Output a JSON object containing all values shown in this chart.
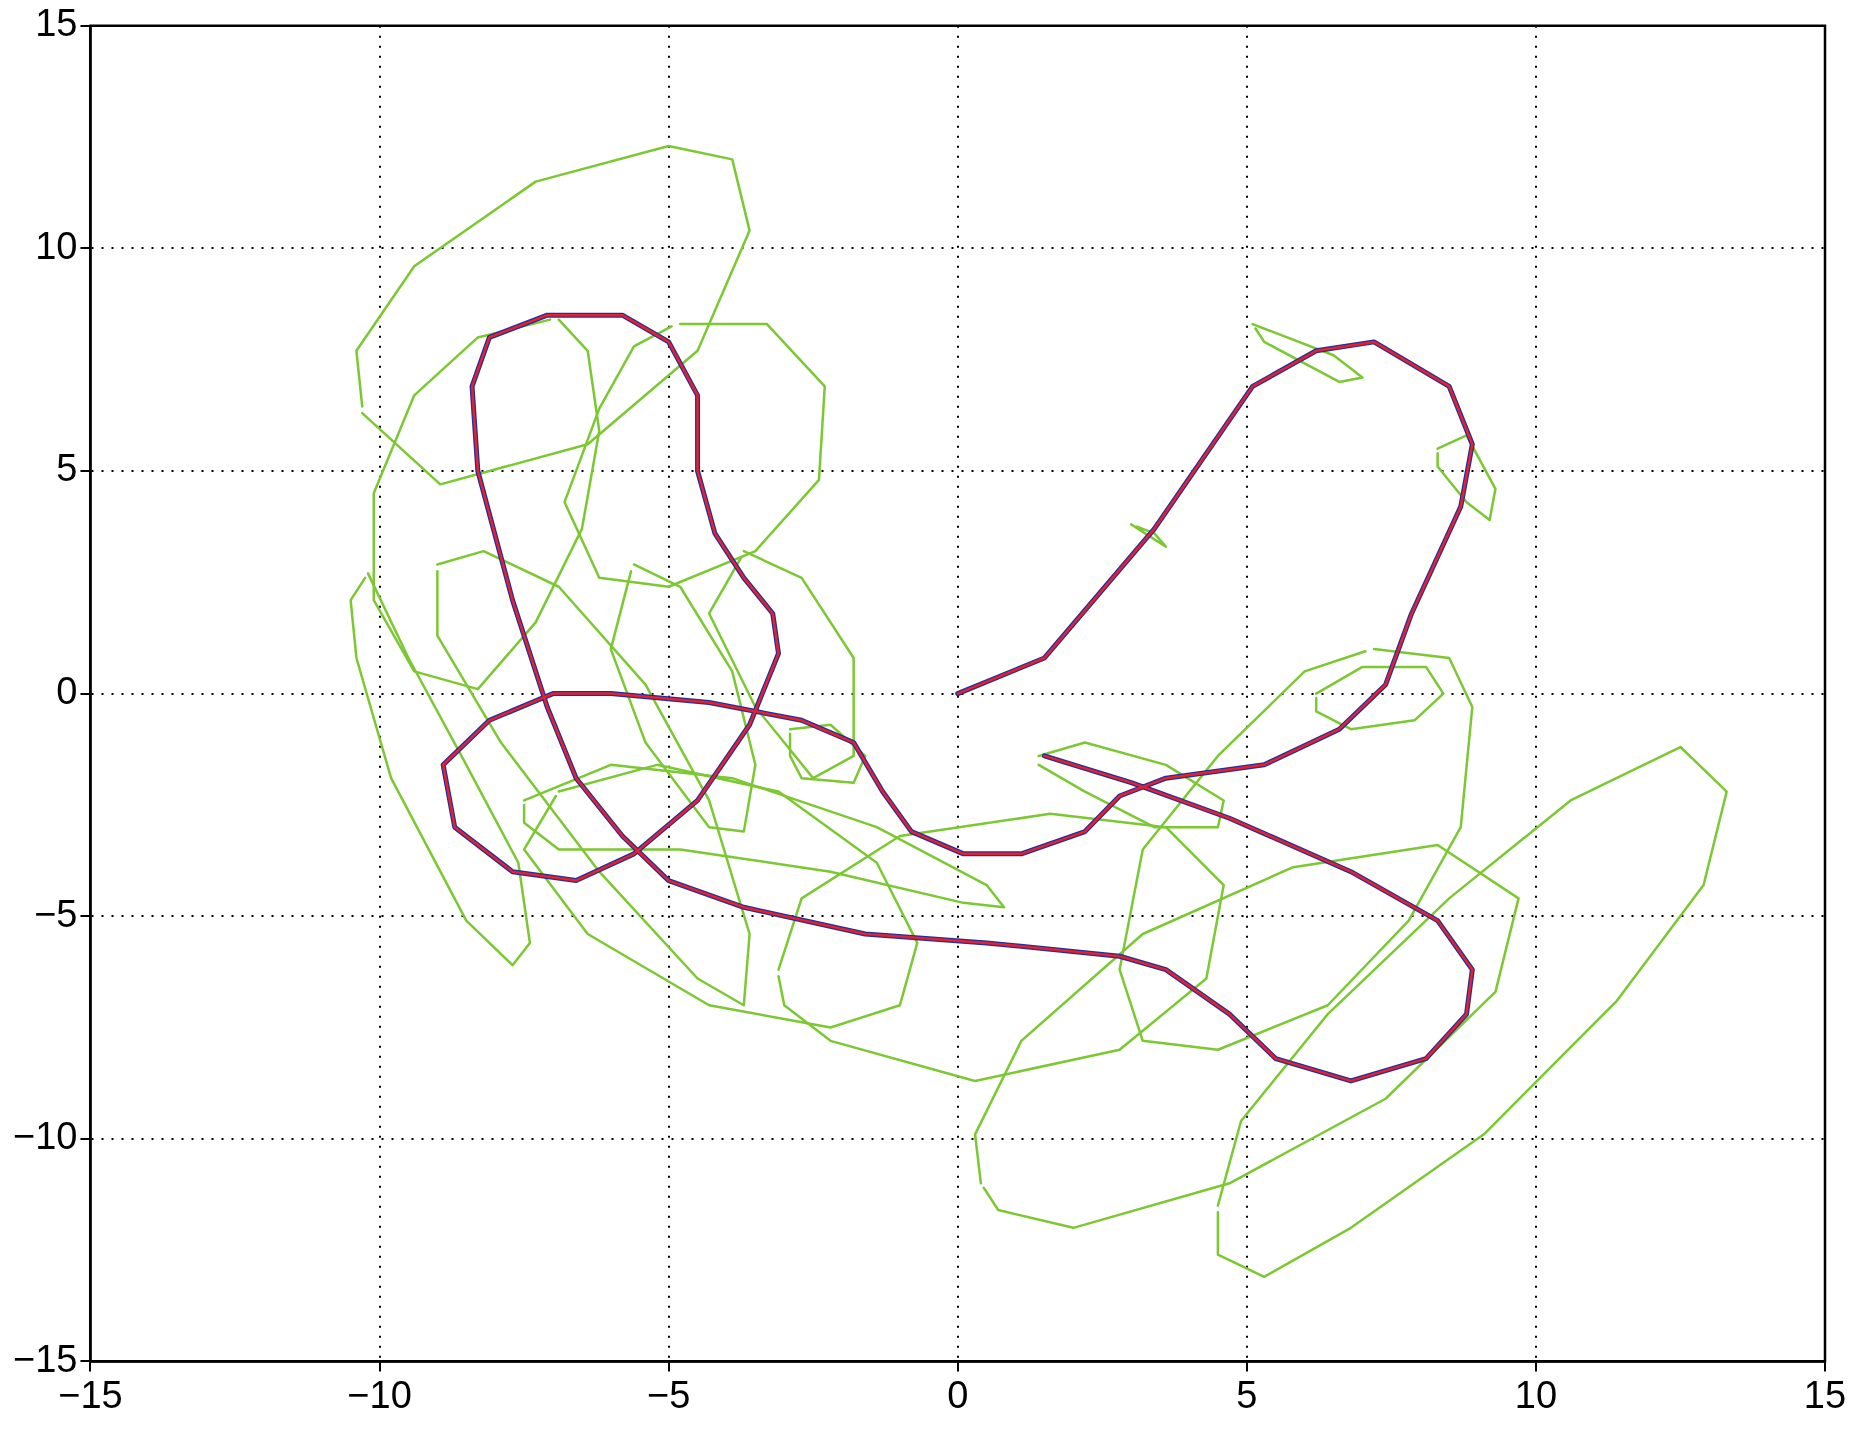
{
  "chart_data": {
    "type": "line",
    "xlim": [
      -15,
      15
    ],
    "ylim": [
      -15,
      15
    ],
    "xticks": [
      {
        "value": -15,
        "label": "−15"
      },
      {
        "value": -10,
        "label": "−10"
      },
      {
        "value": -5,
        "label": "−5"
      },
      0,
      5,
      10,
      15
    ],
    "yticks": [
      {
        "value": -15,
        "label": "−15"
      },
      {
        "value": -10,
        "label": "−10"
      },
      {
        "value": -5,
        "label": "−5"
      },
      0,
      5,
      10,
      15
    ],
    "grid": true,
    "legend": false,
    "marker": "none",
    "line_style": "solid",
    "series": [
      {
        "color": "#e8202a",
        "x": [
          0,
          1.5,
          3.4,
          5.1,
          6.2,
          7.2,
          8.5,
          8.9,
          8.7,
          7.85,
          7.4,
          6.6,
          5.3,
          3.6,
          2.8,
          2.2,
          1.1,
          0.1,
          -0.8,
          -1.3,
          -1.8,
          -2.7,
          -4.3,
          -6.0,
          -7.0,
          -8.1,
          -8.9,
          -8.7,
          -7.7,
          -6.6,
          -5.6,
          -4.5,
          -3.6,
          -3.1,
          -3.2,
          -3.7,
          -4.2,
          -4.5,
          -4.5,
          -5.0,
          -5.8,
          -7.1,
          -8.1,
          -8.4,
          -8.3,
          -7.7,
          -7.1,
          -6.6,
          -5.8,
          -5.0,
          -3.7,
          -1.6,
          0.5,
          2.8,
          3.6,
          4.7,
          5.5,
          6.8,
          8.1,
          8.8,
          8.9,
          8.3,
          6.8,
          4.7,
          3.0,
          1.5
        ],
        "values": [
          0,
          0.8,
          3.7,
          6.9,
          7.7,
          7.9,
          6.9,
          5.6,
          4.2,
          1.8,
          0.2,
          -0.8,
          -1.6,
          -1.9,
          -2.3,
          -3.1,
          -3.6,
          -3.6,
          -3.1,
          -2.2,
          -1.1,
          -0.6,
          -0.2,
          0,
          0,
          -0.6,
          -1.6,
          -3.0,
          -4.0,
          -4.2,
          -3.6,
          -2.4,
          -0.7,
          0.9,
          1.8,
          2.6,
          3.6,
          5.0,
          6.7,
          7.9,
          8.5,
          8.5,
          8.0,
          6.9,
          5.0,
          2.1,
          -0.3,
          -1.9,
          -3.2,
          -4.2,
          -4.8,
          -5.4,
          -5.6,
          -5.9,
          -6.2,
          -7.2,
          -8.2,
          -8.7,
          -8.2,
          -7.2,
          -6.2,
          -5.1,
          -4.0,
          -2.8,
          -2.0,
          -1.4
        ]
      },
      {
        "color": "#2030a0",
        "x": [
          0,
          1.5,
          3.4,
          5.1,
          6.2,
          7.2,
          8.5,
          8.9,
          8.7,
          7.85,
          7.4,
          6.6,
          5.3,
          3.6,
          2.8,
          2.2,
          1.1,
          0.1,
          -0.8,
          -1.3,
          -1.8,
          -2.7,
          -4.3,
          -6.0,
          -7.0,
          -8.1,
          -8.9,
          -8.7,
          -7.7,
          -6.6,
          -5.6,
          -4.5,
          -3.6,
          -3.1,
          -3.2,
          -3.7,
          -4.2,
          -4.5,
          -4.5,
          -5.0,
          -5.8,
          -7.1,
          -8.1,
          -8.4,
          -8.3,
          -7.7,
          -7.1,
          -6.6,
          -5.8,
          -5.0,
          -3.7,
          -1.6,
          0.5,
          2.8,
          3.6,
          4.7,
          5.5,
          6.8,
          8.1,
          8.8,
          8.9,
          8.3,
          6.8,
          4.7,
          3.0,
          1.5
        ],
        "values": [
          0,
          0.8,
          3.7,
          6.9,
          7.7,
          7.9,
          6.9,
          5.6,
          4.2,
          1.8,
          0.2,
          -0.8,
          -1.6,
          -1.9,
          -2.3,
          -3.1,
          -3.6,
          -3.6,
          -3.1,
          -2.2,
          -1.1,
          -0.6,
          -0.2,
          0,
          0,
          -0.6,
          -1.6,
          -3.0,
          -4.0,
          -4.2,
          -3.6,
          -2.4,
          -0.7,
          0.9,
          1.8,
          2.6,
          3.6,
          5.0,
          6.7,
          7.9,
          8.5,
          8.5,
          8.0,
          6.9,
          5.0,
          2.1,
          -0.3,
          -1.9,
          -3.2,
          -4.2,
          -4.8,
          -5.4,
          -5.6,
          -5.9,
          -6.2,
          -7.2,
          -8.2,
          -8.7,
          -8.2,
          -7.2,
          -6.2,
          -5.1,
          -4.0,
          -2.8,
          -2.0,
          -1.4
        ]
      },
      {
        "color": "#7cc832",
        "x": [
          -10.3,
          -8.95,
          -6.4,
          -4.5,
          -3.6,
          -3.9,
          -5.0,
          -7.3,
          -9.4,
          -10.4,
          -10.3
        ],
        "values": [
          6.3,
          4.7,
          5.6,
          7.7,
          10.4,
          12.0,
          12.3,
          11.5,
          9.6,
          7.7,
          6.45
        ]
      },
      {
        "color": "#7cc832",
        "x": [
          -6.9,
          -6.4,
          -6.2,
          -6.5,
          -7.3,
          -8.3,
          -9.4,
          -10.1,
          -10.1,
          -9.4,
          -8.3,
          -7.05
        ],
        "values": [
          8.4,
          7.7,
          5.9,
          3.7,
          1.6,
          0.1,
          0.5,
          2.1,
          4.5,
          6.7,
          8.0,
          8.4
        ]
      },
      {
        "color": "#7cc832",
        "x": [
          -4.8,
          -3.3,
          -2.3,
          -2.4,
          -3.5,
          -5.0,
          -6.2,
          -6.8,
          -6.2,
          -5.6,
          -4.95
        ],
        "values": [
          8.3,
          8.3,
          6.9,
          4.8,
          3.2,
          2.4,
          2.6,
          4.3,
          6.4,
          7.8,
          8.25
        ]
      },
      {
        "color": "#7cc832",
        "x": [
          -10.2,
          -9.5,
          -8.5,
          -7.6,
          -7.4,
          -7.7,
          -8.5,
          -9.8,
          -10.4,
          -10.5,
          -10.25
        ],
        "values": [
          2.7,
          0.8,
          -1.6,
          -3.8,
          -5.6,
          -6.1,
          -5.1,
          -1.9,
          0.8,
          2.1,
          2.6
        ]
      },
      {
        "color": "#7cc832",
        "x": [
          -9.0,
          -8.2,
          -6.9,
          -5.4,
          -4.3,
          -3.6,
          -3.7,
          -4.5,
          -6.2,
          -7.9,
          -9.0,
          -9.0
        ],
        "values": [
          2.9,
          3.2,
          2.4,
          0.2,
          -2.4,
          -5.4,
          -7.0,
          -6.4,
          -4.0,
          -1.1,
          1.3,
          2.75
        ]
      },
      {
        "color": "#7cc832",
        "x": [
          -5.6,
          -4.8,
          -3.9,
          -3.5,
          -3.7,
          -4.3,
          -5.4,
          -6.0,
          -5.65
        ],
        "values": [
          2.9,
          2.4,
          0.5,
          -1.6,
          -3.1,
          -3.0,
          -1.1,
          1.0,
          2.75
        ]
      },
      {
        "color": "#7cc832",
        "x": [
          -3.7,
          -2.7,
          -1.8,
          -1.8,
          -2.5,
          -3.5,
          -4.3,
          -3.75
        ],
        "values": [
          3.2,
          2.6,
          0.8,
          -1.4,
          -1.9,
          -0.3,
          1.8,
          3.05
        ]
      },
      {
        "color": "#7cc832",
        "x": [
          -7.5,
          -6.0,
          -3.9,
          -1.4,
          0.5,
          0.8,
          0.1,
          -2.2,
          -4.8,
          -6.9,
          -7.5,
          -7.5
        ],
        "values": [
          -2.4,
          -1.6,
          -1.9,
          -3.0,
          -4.3,
          -4.8,
          -4.7,
          -4.0,
          -3.5,
          -3.5,
          -2.9,
          -2.5
        ]
      },
      {
        "color": "#7cc832",
        "x": [
          -2.9,
          -2.2,
          -1.6,
          -1.8,
          -2.7,
          -2.9,
          -2.9
        ],
        "values": [
          -0.8,
          -0.7,
          -1.4,
          -2.0,
          -1.9,
          -1.4,
          -0.9
        ]
      },
      {
        "color": "#7cc832",
        "x": [
          -6.9,
          -5.2,
          -3.1,
          -1.4,
          -0.7,
          -1.0,
          -2.2,
          -4.3,
          -6.4,
          -7.5,
          -6.95
        ],
        "values": [
          -2.2,
          -1.6,
          -2.2,
          -3.8,
          -5.6,
          -7.0,
          -7.5,
          -7.0,
          -5.4,
          -3.5,
          -2.3
        ]
      },
      {
        "color": "#7cc832",
        "x": [
          -3.1,
          -2.7,
          -1.0,
          1.6,
          3.6,
          4.6,
          4.3,
          2.8,
          0.3,
          -2.2,
          -3.0,
          -3.1
        ],
        "values": [
          -6.2,
          -4.6,
          -3.2,
          -2.7,
          -3.0,
          -4.3,
          -6.4,
          -8.0,
          -8.7,
          -7.8,
          -7.0,
          -6.35
        ]
      },
      {
        "color": "#7cc832",
        "x": [
          1.4,
          2.2,
          3.6,
          4.6,
          4.5,
          3.4,
          2.2,
          1.4
        ],
        "values": [
          -1.4,
          -1.1,
          -1.6,
          -2.4,
          -3.0,
          -3.0,
          -2.2,
          -1.6
        ]
      },
      {
        "color": "#7cc832",
        "x": [
          7.2,
          8.5,
          8.9,
          8.7,
          7.8,
          6.4,
          4.5,
          3.2,
          2.8,
          3.2,
          4.5,
          6.0,
          7.05
        ],
        "values": [
          1.0,
          0.8,
          -0.3,
          -3.0,
          -5.1,
          -7.0,
          -8.0,
          -7.8,
          -6.2,
          -3.5,
          -1.4,
          0.5,
          0.95
        ]
      },
      {
        "color": "#7cc832",
        "x": [
          6.2,
          7.0,
          8.1,
          8.4,
          7.9,
          6.8,
          6.2,
          6.2
        ],
        "values": [
          0,
          0.6,
          0.6,
          0,
          -0.6,
          -0.8,
          -0.4,
          -0.1
        ]
      },
      {
        "color": "#7cc832",
        "x": [
          0.4,
          0.3,
          1.1,
          3.2,
          5.8,
          8.3,
          9.7,
          9.3,
          7.4,
          4.7,
          2.0,
          0.7,
          0.45
        ],
        "values": [
          -11.0,
          -9.9,
          -7.8,
          -5.4,
          -3.9,
          -3.4,
          -4.6,
          -6.7,
          -9.1,
          -11.0,
          -12.0,
          -11.6,
          -11.1
        ]
      },
      {
        "color": "#7cc832",
        "x": [
          4.5,
          4.9,
          6.4,
          8.5,
          10.6,
          12.5,
          13.3,
          12.9,
          11.4,
          9.1,
          6.8,
          5.3,
          4.5,
          4.5
        ],
        "values": [
          -11.5,
          -9.6,
          -7.2,
          -4.6,
          -2.4,
          -1.2,
          -2.2,
          -4.3,
          -6.9,
          -9.9,
          -12.0,
          -13.1,
          -12.6,
          -11.65
        ]
      },
      {
        "color": "#7cc832",
        "x": [
          5.1,
          6.5,
          7.0,
          6.6,
          5.3,
          5.15
        ],
        "values": [
          8.3,
          7.6,
          7.1,
          7.0,
          7.9,
          8.2
        ]
      },
      {
        "color": "#7cc832",
        "x": [
          8.3,
          8.8,
          9.3,
          9.2,
          8.8,
          8.3,
          8.3
        ],
        "values": [
          5.5,
          5.8,
          4.6,
          3.9,
          4.3,
          5.1,
          5.4
        ]
      },
      {
        "color": "#7cc832",
        "x": [
          3.0,
          3.6,
          3.4,
          3.1
        ],
        "values": [
          3.8,
          3.3,
          3.6,
          3.75
        ]
      }
    ]
  }
}
